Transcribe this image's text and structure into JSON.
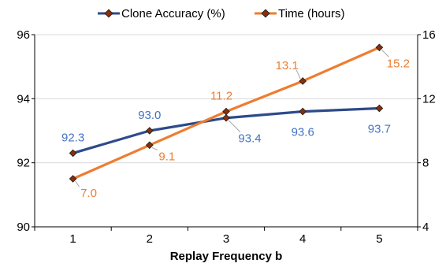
{
  "chart_data": {
    "type": "line",
    "title": "",
    "xlabel": "Replay Frequency b",
    "ylabel_left": "",
    "ylabel_right": "",
    "x": [
      1,
      2,
      3,
      4,
      5
    ],
    "x_tick_labels": [
      "1",
      "2",
      "3",
      "4",
      "5"
    ],
    "ylim_left": [
      90,
      96
    ],
    "y_ticks_left": [
      "90",
      "92",
      "94",
      "96"
    ],
    "ylim_right": [
      4,
      16
    ],
    "y_ticks_right": [
      "4",
      "8",
      "12",
      "16"
    ],
    "grid": "horizontal",
    "legend_position": "top-center",
    "series": [
      {
        "name": "Clone Accuracy (%)",
        "axis": "left",
        "color": "#2E4A8B",
        "label_color": "#4472C4",
        "values": [
          92.3,
          93.0,
          93.4,
          93.6,
          93.7
        ],
        "data_labels": [
          "92.3",
          "93.0",
          "93.4",
          "93.6",
          "93.7"
        ]
      },
      {
        "name": "Time (hours)",
        "axis": "right",
        "color": "#ED7D31",
        "label_color": "#ED7D31",
        "values": [
          7.0,
          9.1,
          11.2,
          13.1,
          15.2
        ],
        "data_labels": [
          "7.0",
          "9.1",
          "11.2",
          "13.1",
          "15.2"
        ]
      }
    ]
  }
}
